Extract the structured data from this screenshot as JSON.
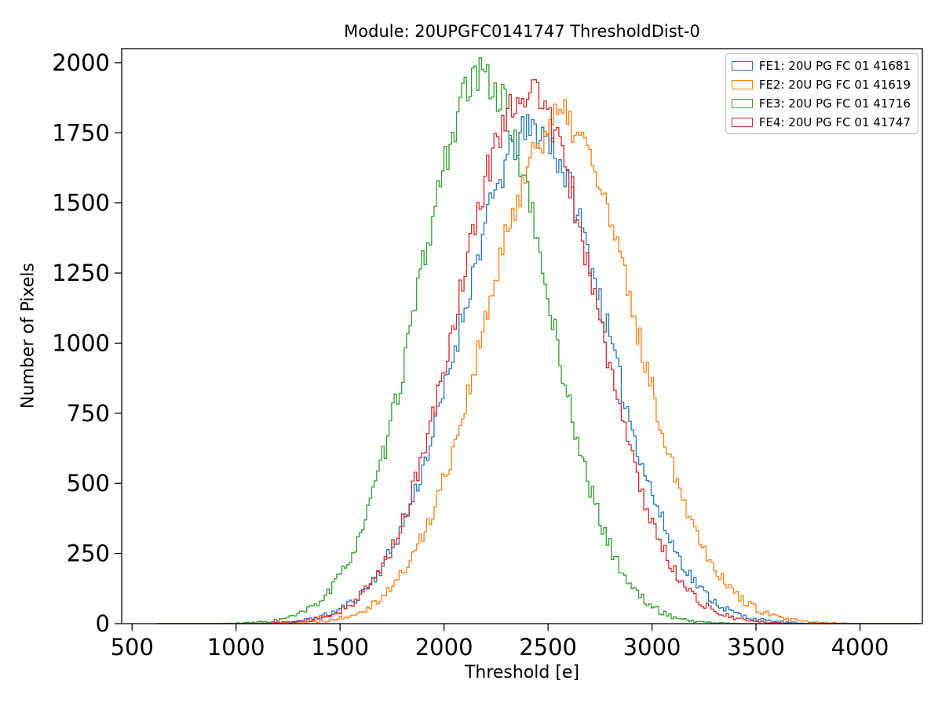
{
  "chart_data": {
    "type": "line",
    "subtype": "step-histogram",
    "title": "Module: 20UPGFC0141747 ThresholdDist-0",
    "xlabel": "Threshold [e]",
    "ylabel": "Number of Pixels",
    "xlim": [
      450,
      4300
    ],
    "ylim": [
      0,
      2050
    ],
    "xticks": [
      500,
      1000,
      1500,
      2000,
      2500,
      3000,
      3500,
      4000
    ],
    "yticks": [
      0,
      250,
      500,
      750,
      1000,
      1250,
      1500,
      1750,
      2000
    ],
    "grid": false,
    "legend_position": "upper right",
    "hist_range": [
      620,
      4280
    ],
    "bin_width": 12,
    "series": [
      {
        "name": "FE1",
        "legend_label": "FE1: 20U PG FC 01 41681",
        "color": "#1f77b4",
        "mean": 2430,
        "sigma": 350,
        "peak": 1760,
        "seed": 11
      },
      {
        "name": "FE2",
        "legend_label": "FE2: 20U PG FC 01 41619",
        "color": "#ff7f0e",
        "mean": 2560,
        "sigma": 355,
        "peak": 1800,
        "seed": 22
      },
      {
        "name": "FE3",
        "legend_label": "FE3: 20U PG FC 01 41716",
        "color": "#2ca02c",
        "mean": 2185,
        "sigma": 310,
        "peak": 1950,
        "seed": 33
      },
      {
        "name": "FE4",
        "legend_label": "FE4: 20U PG FC 01 41747",
        "color": "#d62728",
        "mean": 2400,
        "sigma": 330,
        "peak": 1900,
        "seed": 44
      }
    ],
    "axes_color": "#000000",
    "background_color": "#ffffff"
  }
}
